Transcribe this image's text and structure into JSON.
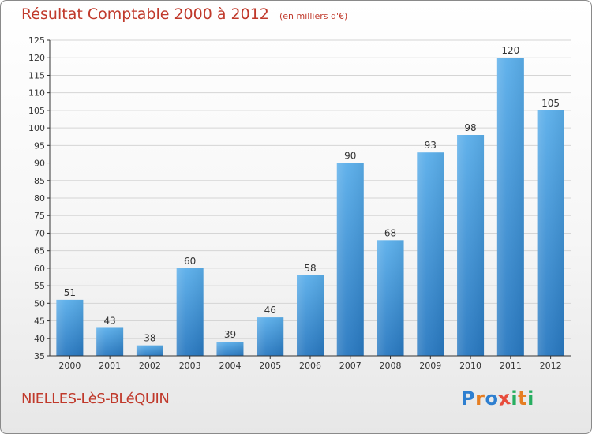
{
  "title": "Résultat Comptable 2000 à 2012",
  "unit_note": "(en milliers d'€)",
  "commune": "NIELLES-LèS-BLéQUIN",
  "logo": {
    "text": "Proxiti",
    "letters": [
      {
        "ch": "P",
        "color": "#2e7fd0"
      },
      {
        "ch": "r",
        "color": "#e67e22"
      },
      {
        "ch": "o",
        "color": "#2e7fd0"
      },
      {
        "ch": "x",
        "color": "#e74c3c"
      },
      {
        "ch": "i",
        "color": "#27ae60"
      },
      {
        "ch": "t",
        "color": "#e67e22"
      },
      {
        "ch": "i",
        "color": "#27ae60"
      }
    ]
  },
  "colors": {
    "title": "#c0392b",
    "bar_light": "#5aaeea",
    "bar_dark": "#2878c0",
    "grid": "#d5d5d5",
    "axis": "#333333"
  },
  "chart_data": {
    "type": "bar",
    "categories": [
      "2000",
      "2001",
      "2002",
      "2003",
      "2004",
      "2005",
      "2006",
      "2007",
      "2008",
      "2009",
      "2010",
      "2011",
      "2012"
    ],
    "values": [
      51,
      43,
      38,
      60,
      39,
      46,
      58,
      90,
      68,
      93,
      98,
      120,
      105
    ],
    "ylim": [
      35,
      125
    ],
    "yticks": [
      35,
      40,
      45,
      50,
      55,
      60,
      65,
      70,
      75,
      80,
      85,
      90,
      95,
      100,
      105,
      110,
      115,
      120,
      125
    ],
    "title": "Résultat Comptable 2000 à 2012",
    "xlabel": "",
    "ylabel": "",
    "grid": true
  }
}
